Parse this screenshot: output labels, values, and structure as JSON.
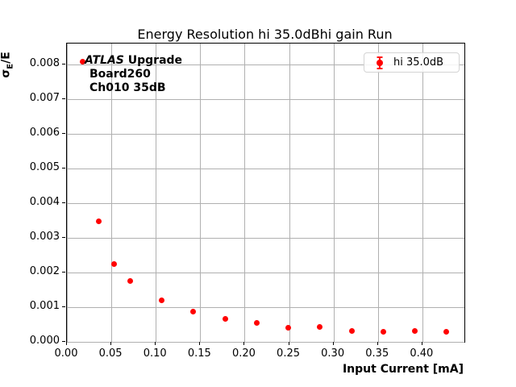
{
  "figure_title": "Energy Resolution hi 35.0dBhi gain Run",
  "annotation": {
    "experiment": "ATLAS",
    "experiment_suffix": " Upgrade",
    "board": "Board260",
    "channel": "Ch010 35dB"
  },
  "legend": {
    "label": "hi 35.0dB",
    "marker": "errorbar-point"
  },
  "axes": {
    "xlabel": "Input Current [mA]",
    "ylabel": "σE/E",
    "ylabel_sigma": "σ",
    "ylabel_subscript": "E",
    "ylabel_rest": "/E"
  },
  "colors": {
    "marker": "#ff0000",
    "grid": "#b0b0b0",
    "spine": "#000000",
    "legend_border": "#d4d4d4",
    "background": "#ffffff"
  },
  "chart_data": {
    "type": "scatter",
    "title": "Energy Resolution hi 35.0dBhi gain Run",
    "xlabel": "Input Current [mA]",
    "ylabel": "σ_E/E",
    "grid": true,
    "legend_position": "upper right",
    "xlim": [
      0,
      0.4473
    ],
    "ylim": [
      0,
      0.0086
    ],
    "xticks": [
      0.0,
      0.05,
      0.1,
      0.15,
      0.2,
      0.25,
      0.3,
      0.35,
      0.4
    ],
    "xtick_labels": [
      "0.00",
      "0.05",
      "0.10",
      "0.15",
      "0.20",
      "0.25",
      "0.30",
      "0.35",
      "0.40"
    ],
    "yticks": [
      0.0,
      0.001,
      0.002,
      0.003,
      0.004,
      0.005,
      0.006,
      0.007,
      0.008
    ],
    "ytick_labels": [
      "0.000",
      "0.001",
      "0.002",
      "0.003",
      "0.004",
      "0.005",
      "0.006",
      "0.007",
      "0.008"
    ],
    "series": [
      {
        "name": "hi 35.0dB",
        "color": "#ff0000",
        "marker": "circle-with-errorbar",
        "x": [
          0.0178,
          0.0356,
          0.0534,
          0.0712,
          0.1068,
          0.1424,
          0.178,
          0.2136,
          0.2492,
          0.2848,
          0.3204,
          0.356,
          0.3916,
          0.4272
        ],
        "y": [
          0.00807,
          0.00348,
          0.00225,
          0.00175,
          0.0012,
          0.00087,
          0.00067,
          0.00055,
          0.0004,
          0.00044,
          0.00032,
          0.00029,
          0.00031,
          0.00029
        ]
      }
    ]
  }
}
